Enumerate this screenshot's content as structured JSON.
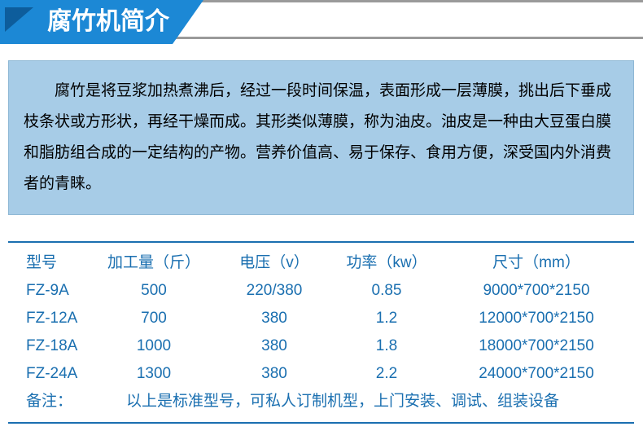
{
  "title": "腐竹机简介",
  "description": "腐竹是将豆浆加热煮沸后，经过一段时间保温，表面形成一层薄膜，挑出后下垂成枝条状或方形状，再经干燥而成。其形类似薄膜，称为油皮。油皮是一种由大豆蛋白膜和脂肪组合成的一定结构的产物。营养价值高、易于保存、食用方便，深受国内外消费者的青睐。",
  "table": {
    "headers": {
      "model": "型号",
      "capacity": "加工量（斤）",
      "voltage": "电压（v）",
      "power": "功率（kw）",
      "size": "尺寸（mm）"
    },
    "rows": [
      {
        "model": "FZ-9A",
        "capacity": "500",
        "voltage": "220/380",
        "power": "0.85",
        "size": "9000*700*2150"
      },
      {
        "model": "FZ-12A",
        "capacity": "700",
        "voltage": "380",
        "power": "1.2",
        "size": "12000*700*2150"
      },
      {
        "model": "FZ-18A",
        "capacity": "1000",
        "voltage": "380",
        "power": "1.8",
        "size": "18000*700*2150"
      },
      {
        "model": "FZ-24A",
        "capacity": "1300",
        "voltage": "380",
        "power": "2.2",
        "size": "24000*700*2150"
      }
    ],
    "remark_label": "备注：",
    "remark_text": "以上是标准型号，可私人订制机型，上门安装、调试、组装设备"
  },
  "colors": {
    "ribbon_bg": "#1c88d5",
    "ribbon_dark": "#0d5d9c",
    "bar_border": "#9a9a9a",
    "desc_bg": "#a7cce7",
    "table_color": "#1a6fb0"
  }
}
